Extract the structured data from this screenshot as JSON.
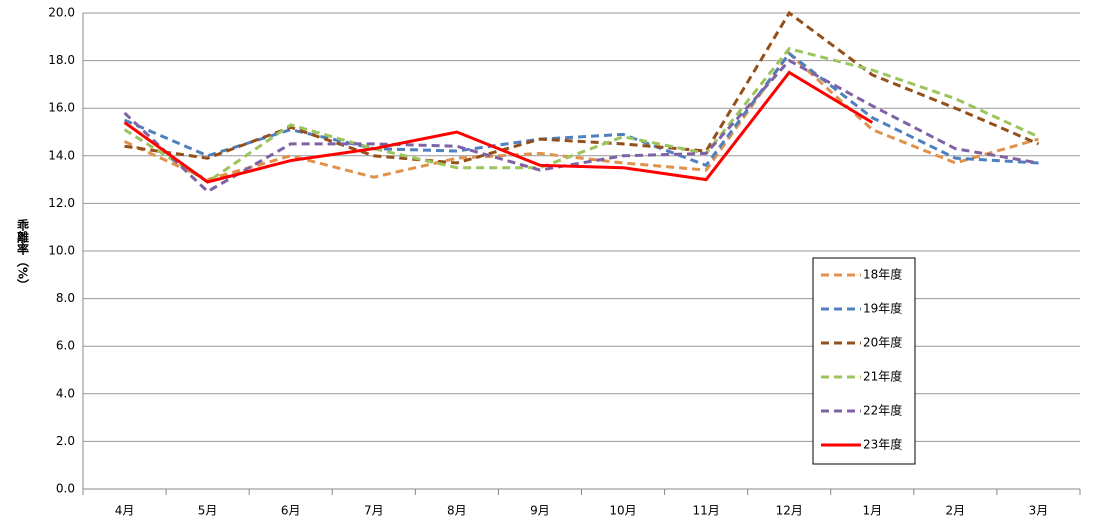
{
  "chart_data": {
    "type": "line",
    "y_label": "乖離率（%）",
    "categories": [
      "4月",
      "5月",
      "6月",
      "7月",
      "8月",
      "9月",
      "10月",
      "11月",
      "12月",
      "1月",
      "2月",
      "3月"
    ],
    "series": [
      {
        "name": "18年度",
        "color": "#e0914a",
        "style": "dashed",
        "values": [
          14.6,
          13.0,
          14.0,
          13.1,
          13.9,
          14.1,
          13.7,
          13.4,
          18.3,
          15.1,
          13.7,
          14.7
        ]
      },
      {
        "name": "19年度",
        "color": "#4f7fbf",
        "style": "dashed",
        "values": [
          15.5,
          14.0,
          15.1,
          14.3,
          14.2,
          14.7,
          14.9,
          13.6,
          18.3,
          15.6,
          13.9,
          13.7
        ]
      },
      {
        "name": "20年度",
        "color": "#94501b",
        "style": "dashed",
        "values": [
          14.4,
          13.9,
          15.2,
          14.0,
          13.7,
          14.7,
          14.5,
          14.2,
          20.0,
          17.4,
          16.0,
          14.5
        ]
      },
      {
        "name": "21年度",
        "color": "#9bc45c",
        "style": "dashed",
        "values": [
          15.1,
          12.9,
          15.3,
          14.3,
          13.5,
          13.5,
          14.8,
          14.1,
          18.5,
          17.6,
          16.4,
          14.8
        ]
      },
      {
        "name": "22年度",
        "color": "#7f62a6",
        "style": "dashed",
        "values": [
          15.8,
          12.5,
          14.5,
          14.5,
          14.4,
          13.4,
          14.0,
          14.1,
          18.0,
          16.1,
          14.3,
          13.7
        ]
      },
      {
        "name": "23年度",
        "color": "#ff0000",
        "style": "solid",
        "values": [
          15.4,
          12.9,
          13.8,
          14.3,
          15.0,
          13.6,
          13.5,
          13.0,
          17.5,
          15.4,
          null,
          null
        ]
      }
    ],
    "ylim": [
      0,
      20
    ],
    "yticks": [
      {
        "value": 0,
        "label": "0.0"
      },
      {
        "value": 2,
        "label": "2.0"
      },
      {
        "value": 4,
        "label": "4.0"
      },
      {
        "value": 6,
        "label": "6.0"
      },
      {
        "value": 8,
        "label": "8.0"
      },
      {
        "value": 10,
        "label": "10.0"
      },
      {
        "value": 12,
        "label": "12.0"
      },
      {
        "value": 14,
        "label": "14.0"
      },
      {
        "value": 16,
        "label": "16.0"
      },
      {
        "value": 18,
        "label": "18.0"
      },
      {
        "value": 20,
        "label": "20.0"
      }
    ],
    "grid": true
  }
}
